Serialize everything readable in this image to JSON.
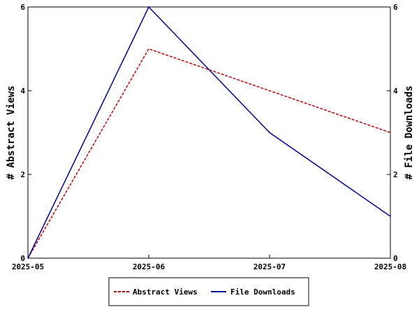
{
  "chart_data": {
    "type": "line",
    "x": [
      "2025-05",
      "2025-06",
      "2025-07",
      "2025-08"
    ],
    "series": [
      {
        "name": "Abstract Views",
        "values": [
          0,
          5,
          4,
          3
        ],
        "color": "#c00000",
        "style": "dashed",
        "axis": "left"
      },
      {
        "name": "File Downloads",
        "values": [
          0,
          6,
          3,
          1
        ],
        "color": "#000099",
        "style": "solid",
        "axis": "right"
      }
    ],
    "ylabel": "# Abstract Views",
    "y2label": "# File Downloads",
    "ylim": [
      0,
      6
    ],
    "y2lim": [
      0,
      6
    ],
    "yticks": [
      "0",
      "2",
      "4",
      "6"
    ],
    "y2ticks": [
      "0",
      "2",
      "4",
      "6"
    ],
    "grid": false,
    "legend_position": "bottom-center"
  }
}
